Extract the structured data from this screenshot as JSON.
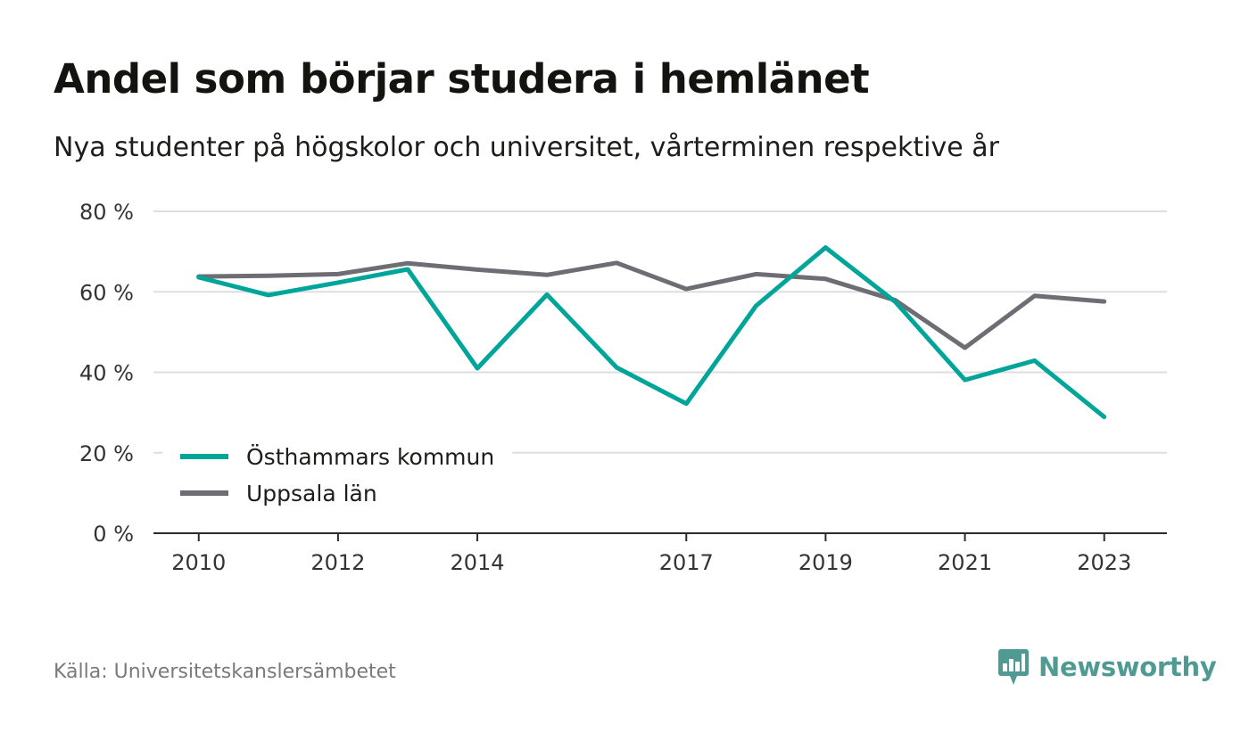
{
  "title": "Andel som börjar studera i hemlänet",
  "subtitle": "Nya studenter på högskolor och universitet, vårterminen respektive år",
  "source": "Källa: Universitetskanslersämbetet",
  "brand": {
    "name": "Newsworthy",
    "icon": "newsworthy-logo-icon",
    "color": "#4f9a92"
  },
  "chart_data": {
    "type": "line",
    "x": [
      2010,
      2011,
      2012,
      2013,
      2014,
      2015,
      2016,
      2017,
      2018,
      2019,
      2020,
      2021,
      2022,
      2023
    ],
    "x_ticks": [
      "2010",
      "2012",
      "2014",
      "2017",
      "2019",
      "2021",
      "2023"
    ],
    "y_ticks": [
      "0 %",
      "20 %",
      "40 %",
      "60 %",
      "80 %"
    ],
    "ylim": [
      0,
      80
    ],
    "grid": true,
    "legend_position": "bottom-left",
    "series": [
      {
        "name": "Östhammars kommun",
        "color": "#00a59a",
        "values": [
          63.6,
          59.2,
          62.3,
          65.6,
          41.0,
          59.3,
          41.2,
          32.2,
          56.5,
          71.0,
          57.5,
          38.1,
          42.9,
          28.9
        ]
      },
      {
        "name": "Uppsala län",
        "color": "#6e6d73",
        "values": [
          63.8,
          64.0,
          64.4,
          67.1,
          65.5,
          64.2,
          67.2,
          60.7,
          64.4,
          63.2,
          57.9,
          46.1,
          59.0,
          57.6
        ]
      }
    ]
  }
}
